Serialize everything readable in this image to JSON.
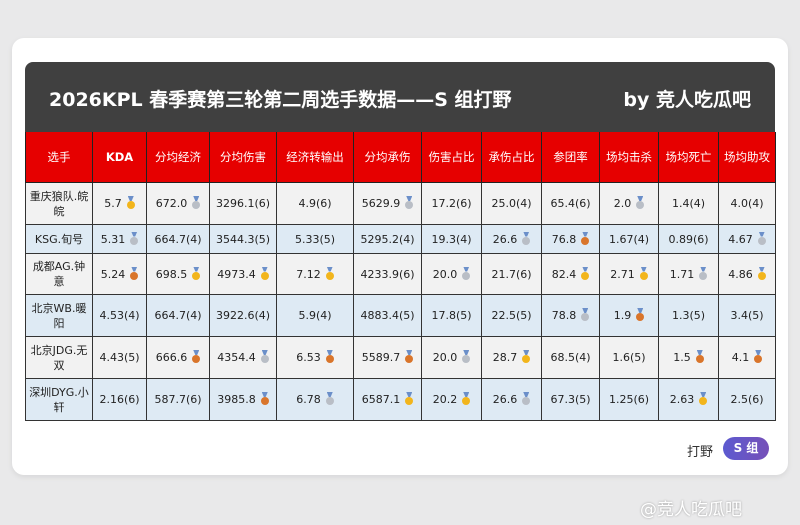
{
  "title": "2026KPL 春季赛第三轮第二周选手数据——S 组打野",
  "byline": "by 竞人吃瓜吧",
  "columns": [
    "选手",
    "KDA",
    "分均经济",
    "分均伤害",
    "经济转输出",
    "分均承伤",
    "伤害占比",
    "承伤占比",
    "参团率",
    "场均击杀",
    "场均死亡",
    "场均助攻"
  ],
  "rows": [
    {
      "player": "重庆狼队.皖皖",
      "cells": [
        {
          "v": "5.7",
          "m": "gold"
        },
        {
          "v": "672.0",
          "m": "silver"
        },
        {
          "v": "3296.1(6)"
        },
        {
          "v": "4.9(6)"
        },
        {
          "v": "5629.9",
          "m": "silver"
        },
        {
          "v": "17.2(6)"
        },
        {
          "v": "25.0(4)"
        },
        {
          "v": "65.4(6)"
        },
        {
          "v": "2.0",
          "m": "silver"
        },
        {
          "v": "1.4(4)"
        },
        {
          "v": "4.0(4)"
        }
      ]
    },
    {
      "player": "KSG.旬号",
      "cells": [
        {
          "v": "5.31",
          "m": "silver"
        },
        {
          "v": "664.7(4)"
        },
        {
          "v": "3544.3(5)"
        },
        {
          "v": "5.33(5)"
        },
        {
          "v": "5295.2(4)"
        },
        {
          "v": "19.3(4)"
        },
        {
          "v": "26.6",
          "m": "silver"
        },
        {
          "v": "76.8",
          "m": "bronze"
        },
        {
          "v": "1.67(4)"
        },
        {
          "v": "0.89(6)"
        },
        {
          "v": "4.67",
          "m": "silver"
        }
      ]
    },
    {
      "player": "成都AG.钟意",
      "cells": [
        {
          "v": "5.24",
          "m": "bronze"
        },
        {
          "v": "698.5",
          "m": "gold"
        },
        {
          "v": "4973.4",
          "m": "gold"
        },
        {
          "v": "7.12",
          "m": "gold"
        },
        {
          "v": "4233.9(6)"
        },
        {
          "v": "20.0",
          "m": "silver"
        },
        {
          "v": "21.7(6)"
        },
        {
          "v": "82.4",
          "m": "gold"
        },
        {
          "v": "2.71",
          "m": "gold"
        },
        {
          "v": "1.71",
          "m": "silver"
        },
        {
          "v": "4.86",
          "m": "gold"
        }
      ]
    },
    {
      "player": "北京WB.暖阳",
      "cells": [
        {
          "v": "4.53(4)"
        },
        {
          "v": "664.7(4)"
        },
        {
          "v": "3922.6(4)"
        },
        {
          "v": "5.9(4)"
        },
        {
          "v": "4883.4(5)"
        },
        {
          "v": "17.8(5)"
        },
        {
          "v": "22.5(5)"
        },
        {
          "v": "78.8",
          "m": "silver"
        },
        {
          "v": "1.9",
          "m": "bronze"
        },
        {
          "v": "1.3(5)"
        },
        {
          "v": "3.4(5)"
        }
      ]
    },
    {
      "player": "北京JDG.无双",
      "cells": [
        {
          "v": "4.43(5)"
        },
        {
          "v": "666.6",
          "m": "bronze"
        },
        {
          "v": "4354.4",
          "m": "silver"
        },
        {
          "v": "6.53",
          "m": "bronze"
        },
        {
          "v": "5589.7",
          "m": "bronze"
        },
        {
          "v": "20.0",
          "m": "silver"
        },
        {
          "v": "28.7",
          "m": "gold"
        },
        {
          "v": "68.5(4)"
        },
        {
          "v": "1.6(5)"
        },
        {
          "v": "1.5",
          "m": "bronze"
        },
        {
          "v": "4.1",
          "m": "bronze"
        }
      ]
    },
    {
      "player": "深圳DYG.小轩",
      "cells": [
        {
          "v": "2.16(6)"
        },
        {
          "v": "587.7(6)"
        },
        {
          "v": "3985.8",
          "m": "bronze"
        },
        {
          "v": "6.78",
          "m": "silver"
        },
        {
          "v": "6587.1",
          "m": "gold"
        },
        {
          "v": "20.2",
          "m": "gold"
        },
        {
          "v": "26.6",
          "m": "silver"
        },
        {
          "v": "67.3(5)"
        },
        {
          "v": "1.25(6)"
        },
        {
          "v": "2.63",
          "m": "gold"
        },
        {
          "v": "2.5(6)"
        }
      ]
    }
  ],
  "footer": {
    "role": "打野",
    "group_badge": "S 组"
  },
  "watermark": "@竞人吃瓜吧",
  "colors": {
    "header_red": "#e60000",
    "title_bar": "#404040",
    "badge": "#5c5ad0"
  }
}
